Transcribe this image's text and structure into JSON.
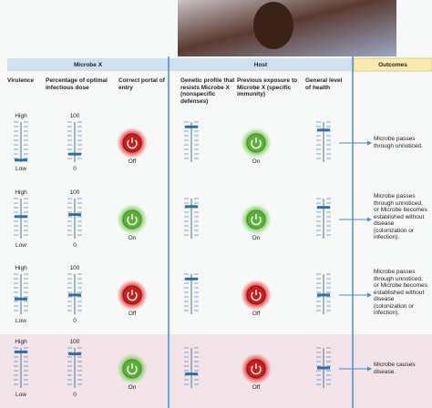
{
  "header": {
    "microbe": "Microbe X",
    "host": "Host",
    "outcomes": "Outcomes"
  },
  "columns": [
    "Virulence",
    "Percentage of optimal infectious dose",
    "Correct portal of entry",
    "Genetic profile that resists Microbe X (nonspecific defenses)",
    "Previous exposure to Microbe X (specific immunity)",
    "General level of health"
  ],
  "rows": [
    {
      "virulence_high": "High",
      "virulence_low": "Low",
      "dose_high": "100",
      "dose_low": "0",
      "portal": "Off",
      "exposure": "On",
      "outcome": "Microbe passes through unnoticed."
    },
    {
      "virulence_high": "High",
      "virulence_low": "Low",
      "dose_high": "100",
      "dose_low": "0",
      "portal": "On",
      "exposure": "On",
      "outcome": "Microbe passes through unnoticed, or Microbe becomes established without disease (colonization or infection)."
    },
    {
      "virulence_high": "High",
      "virulence_low": "Low",
      "dose_high": "100",
      "dose_low": "0",
      "portal": "Off",
      "exposure": "Off",
      "outcome": "Microbe passes through unnoticed, or Microbe becomes established without disease (colonization or infection)."
    },
    {
      "virulence_high": "High",
      "virulence_low": "Low",
      "dose_high": "100",
      "dose_low": "0",
      "portal": "On",
      "exposure": "Off",
      "outcome": "Microbe causes disease."
    }
  ]
}
